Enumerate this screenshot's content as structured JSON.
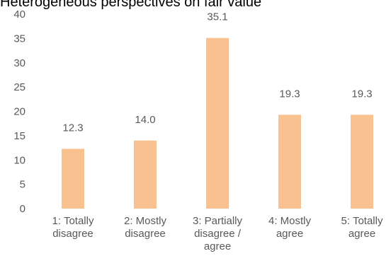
{
  "chart_data": {
    "type": "bar",
    "title": "Heterogeneous perspectives on fair value",
    "categories": [
      [
        "1: Totally",
        "disagree"
      ],
      [
        "2: Mostly",
        "disagree"
      ],
      [
        "3: Partially",
        "disagree /",
        "agree"
      ],
      [
        "4: Mostly",
        "agree"
      ],
      [
        "5: Totally",
        "agree"
      ]
    ],
    "values": [
      12.3,
      14.0,
      35.1,
      19.3,
      19.3
    ],
    "data_labels": [
      "12.3",
      "14.0",
      "35.1",
      "19.3",
      "19.3"
    ],
    "y_ticks": [
      "0",
      "5",
      "10",
      "15",
      "20",
      "25",
      "30",
      "35",
      "40"
    ],
    "ylim": [
      0,
      40
    ],
    "grid": false,
    "legend": "none",
    "bar_color": "#F8C18F",
    "label_color": "#595959"
  }
}
